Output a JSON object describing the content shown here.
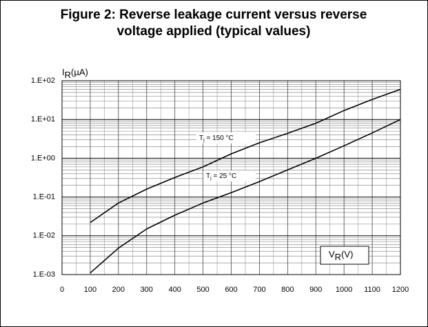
{
  "chart_data": {
    "type": "line",
    "title_lines": [
      "Figure 2: Reverse leakage current versus reverse",
      "voltage applied (typical values)"
    ],
    "y_label": {
      "main": "I",
      "sub": "R",
      "unit": "(µA)"
    },
    "x_label": {
      "main": "V",
      "sub": "R",
      "unit": "(V)"
    },
    "x": [
      100,
      200,
      300,
      400,
      500,
      600,
      700,
      800,
      900,
      1000,
      1100,
      1200
    ],
    "series": [
      {
        "name": {
          "main": "T",
          "sub": "j",
          "rest": " = 150 °C"
        },
        "color": "#000000",
        "values": [
          0.022,
          0.07,
          0.16,
          0.32,
          0.6,
          1.3,
          2.5,
          4.4,
          8,
          17,
          33,
          60
        ]
      },
      {
        "name": {
          "main": "T",
          "sub": "j",
          "rest": " = 25 °C"
        },
        "color": "#000000",
        "values": [
          0.0011,
          0.0048,
          0.015,
          0.034,
          0.07,
          0.13,
          0.25,
          0.5,
          1.0,
          2.1,
          4.5,
          10
        ]
      }
    ],
    "xlim": [
      0,
      1200
    ],
    "xticks": [
      0,
      100,
      200,
      300,
      400,
      500,
      600,
      700,
      800,
      900,
      1000,
      1100,
      1200
    ],
    "ylim": [
      0.001,
      100
    ],
    "yticks": [
      {
        "value": 100,
        "label": "1.E+02"
      },
      {
        "value": 10,
        "label": "1.E+01"
      },
      {
        "value": 1,
        "label": "1.E+00"
      },
      {
        "value": 0.1,
        "label": "1.E-01"
      },
      {
        "value": 0.01,
        "label": "1.E-02"
      },
      {
        "value": 0.001,
        "label": "1.E-03"
      }
    ],
    "y_log": true,
    "grid": true,
    "minor_grid": true
  }
}
